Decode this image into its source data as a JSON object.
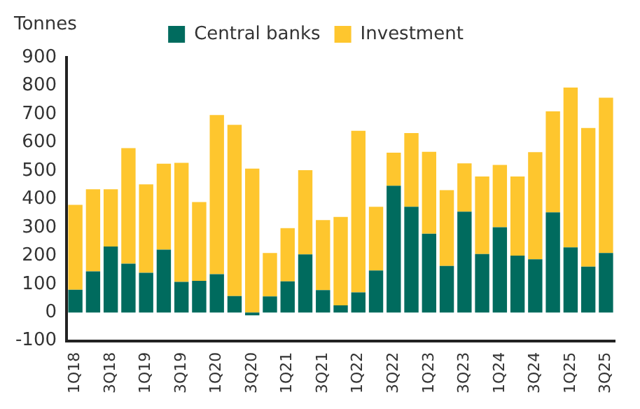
{
  "chart_data": {
    "type": "bar",
    "ylabel": "Tonnes",
    "stacked": true,
    "legend": "top",
    "grid": false,
    "categories": [
      "1Q18",
      null,
      "3Q18",
      null,
      "1Q19",
      null,
      "3Q19",
      null,
      "1Q20",
      null,
      "3Q20",
      null,
      "1Q21",
      null,
      "3Q21",
      null,
      "1Q22",
      null,
      "3Q22",
      null,
      "1Q23",
      null,
      "3Q23",
      null,
      "1Q24",
      null,
      "3Q24",
      null,
      "1Q25",
      null,
      "3Q25"
    ],
    "series": [
      {
        "name": "Central banks",
        "color": "#006b5e",
        "values": [
          80,
          145,
          233,
          172,
          140,
          222,
          108,
          112,
          135,
          58,
          -10,
          57,
          110,
          205,
          79,
          25,
          71,
          148,
          447,
          373,
          278,
          164,
          356,
          206,
          301,
          201,
          188,
          353,
          230,
          162,
          210
        ]
      },
      {
        "name": "Investment",
        "color": "#fec62e",
        "values": [
          300,
          290,
          202,
          408,
          312,
          303,
          420,
          278,
          562,
          604,
          508,
          153,
          188,
          297,
          247,
          312,
          570,
          225,
          117,
          260,
          289,
          268,
          170,
          274,
          220,
          279,
          378,
          357,
          564,
          489,
          548
        ]
      }
    ],
    "ylim": [
      -100,
      900
    ],
    "yticks": [
      -100,
      0,
      100,
      200,
      300,
      400,
      500,
      600,
      700,
      800,
      900
    ]
  }
}
